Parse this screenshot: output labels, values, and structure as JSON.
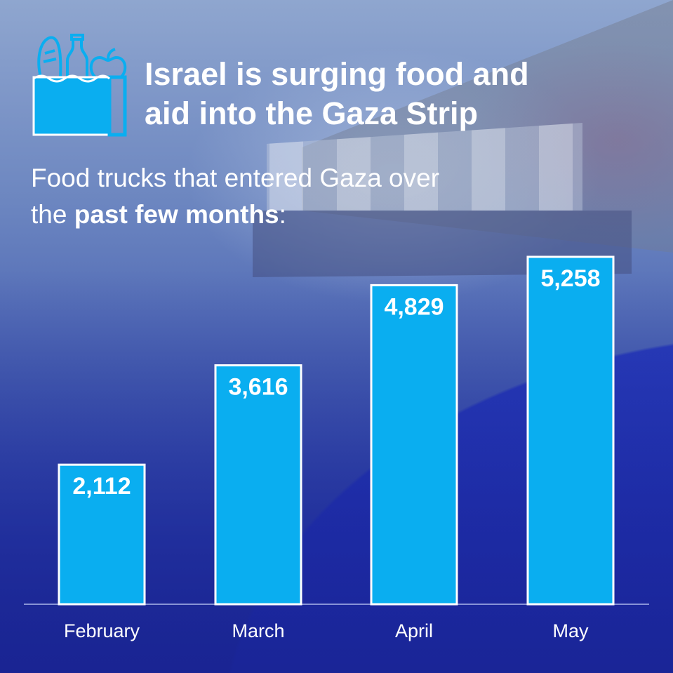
{
  "header": {
    "title_line1": "Israel is surging food and",
    "title_line2": "aid into the Gaza Strip",
    "icon": "grocery-bag-icon"
  },
  "subtitle": {
    "part1": "Food trucks that entered Gaza over",
    "part2_plain": "the ",
    "part2_bold": "past few months",
    "part2_end": ":"
  },
  "colors": {
    "bar": "#0aaef0",
    "bar_border": "#ffffff",
    "text": "#ffffff",
    "background": "#1a2da0"
  },
  "chart_data": {
    "type": "bar",
    "title": "Food trucks that entered Gaza over the past few months:",
    "xlabel": "",
    "ylabel": "",
    "categories": [
      "February",
      "March",
      "April",
      "May"
    ],
    "values": [
      2112,
      3616,
      4829,
      5258
    ],
    "value_labels": [
      "2,112",
      "3,616",
      "4,829",
      "5,258"
    ],
    "ylim": [
      0,
      5258
    ],
    "grid": false,
    "legend": "none"
  }
}
